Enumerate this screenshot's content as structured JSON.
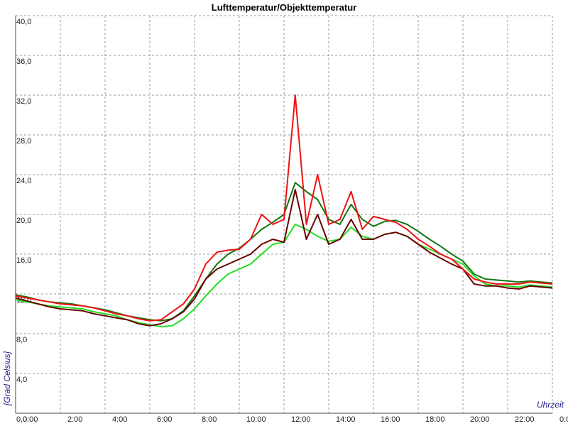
{
  "chart_data": {
    "type": "line",
    "title": "Lufttemperatur/Objekttemperatur",
    "xlabel": "Uhrzeit",
    "ylabel": "[Grad Celsius]",
    "x": [
      0,
      0.5,
      1,
      1.5,
      2,
      2.5,
      3,
      3.5,
      4,
      4.5,
      5,
      5.5,
      6,
      6.5,
      7,
      7.5,
      8,
      8.5,
      9,
      9.5,
      10,
      10.5,
      11,
      11.5,
      12,
      12.5,
      13,
      13.5,
      14,
      14.5,
      15,
      15.5,
      16,
      16.5,
      17,
      17.5,
      18,
      18.5,
      19,
      19.5,
      20,
      20.5,
      21,
      21.5,
      22,
      22.5,
      23,
      23.5,
      24
    ],
    "series": [
      {
        "color": "#22dd22",
        "values": [
          11.4,
          11.2,
          11.0,
          10.8,
          10.7,
          10.6,
          10.5,
          10.2,
          10.0,
          9.8,
          9.4,
          9.1,
          8.9,
          8.7,
          8.8,
          9.5,
          10.5,
          11.8,
          13.0,
          14.0,
          14.5,
          15.0,
          16.0,
          17.0,
          17.2,
          19.0,
          18.5,
          17.8,
          17.3,
          17.5,
          18.7,
          17.8,
          17.5,
          18.0,
          18.2,
          17.8,
          17.0,
          16.5,
          16.0,
          15.5,
          15.0,
          13.8,
          13.0,
          12.8,
          12.8,
          12.7,
          12.9,
          12.8,
          12.7
        ]
      },
      {
        "color": "#117711",
        "values": [
          11.9,
          11.7,
          11.4,
          11.2,
          11.1,
          11.0,
          10.8,
          10.6,
          10.4,
          10.1,
          9.8,
          9.6,
          9.4,
          9.3,
          9.5,
          10.3,
          11.8,
          13.5,
          15.0,
          16.0,
          16.6,
          17.5,
          18.5,
          19.2,
          20.0,
          23.2,
          22.3,
          21.5,
          19.5,
          19.0,
          21.0,
          19.5,
          18.8,
          19.3,
          19.4,
          19.0,
          18.3,
          17.5,
          16.8,
          16.0,
          15.3,
          14.0,
          13.5,
          13.4,
          13.3,
          13.2,
          13.3,
          13.2,
          13.1
        ]
      },
      {
        "color": "#6b0000",
        "values": [
          11.6,
          11.3,
          11.0,
          10.7,
          10.5,
          10.4,
          10.3,
          10.0,
          9.8,
          9.6,
          9.4,
          9.0,
          8.8,
          9.0,
          9.5,
          10.2,
          11.5,
          13.5,
          14.5,
          15.0,
          15.5,
          16.0,
          17.0,
          17.5,
          17.2,
          22.5,
          17.5,
          20.0,
          17.0,
          17.5,
          19.5,
          17.5,
          17.5,
          18.0,
          18.2,
          17.8,
          17.0,
          16.2,
          15.6,
          15.0,
          14.5,
          13.0,
          12.8,
          12.8,
          12.6,
          12.5,
          12.8,
          12.7,
          12.6
        ]
      },
      {
        "color": "#ee1111",
        "values": [
          11.8,
          11.6,
          11.4,
          11.2,
          11.0,
          10.9,
          10.8,
          10.6,
          10.3,
          10.0,
          9.8,
          9.5,
          9.3,
          9.4,
          10.2,
          11.0,
          12.5,
          15.0,
          16.2,
          16.4,
          16.5,
          17.5,
          20.0,
          19.0,
          19.5,
          32.0,
          19.0,
          24.0,
          19.0,
          19.5,
          22.3,
          18.5,
          19.8,
          19.5,
          19.2,
          18.5,
          17.5,
          16.8,
          16.0,
          15.5,
          14.5,
          13.5,
          13.2,
          13.0,
          13.0,
          13.0,
          13.2,
          13.1,
          13.0
        ]
      }
    ],
    "xlim": [
      0,
      24
    ],
    "xticks": [
      {
        "value": 0,
        "label": "0:00"
      },
      {
        "value": 2,
        "label": "2:00"
      },
      {
        "value": 4,
        "label": "4:00"
      },
      {
        "value": 6,
        "label": "6:00"
      },
      {
        "value": 8,
        "label": "8:00"
      },
      {
        "value": 10,
        "label": "10:00"
      },
      {
        "value": 12,
        "label": "12:00"
      },
      {
        "value": 14,
        "label": "14:00"
      },
      {
        "value": 16,
        "label": "16:00"
      },
      {
        "value": 18,
        "label": "18:00"
      },
      {
        "value": 20,
        "label": "20:00"
      },
      {
        "value": 22,
        "label": "22:00"
      },
      {
        "value": 24,
        "label": "0:00"
      }
    ],
    "ylim": [
      0,
      40
    ],
    "yticks": [
      {
        "value": 0,
        "label": "0,0"
      },
      {
        "value": 4,
        "label": "4,0"
      },
      {
        "value": 8,
        "label": "8,0"
      },
      {
        "value": 12,
        "label": "12,0"
      },
      {
        "value": 16,
        "label": "16,0"
      },
      {
        "value": 20,
        "label": "20,0"
      },
      {
        "value": 24,
        "label": "24,0"
      },
      {
        "value": 28,
        "label": "28,0"
      },
      {
        "value": 32,
        "label": "32,0"
      },
      {
        "value": 36,
        "label": "36,0"
      },
      {
        "value": 40,
        "label": "40,0"
      }
    ],
    "grid": true
  }
}
